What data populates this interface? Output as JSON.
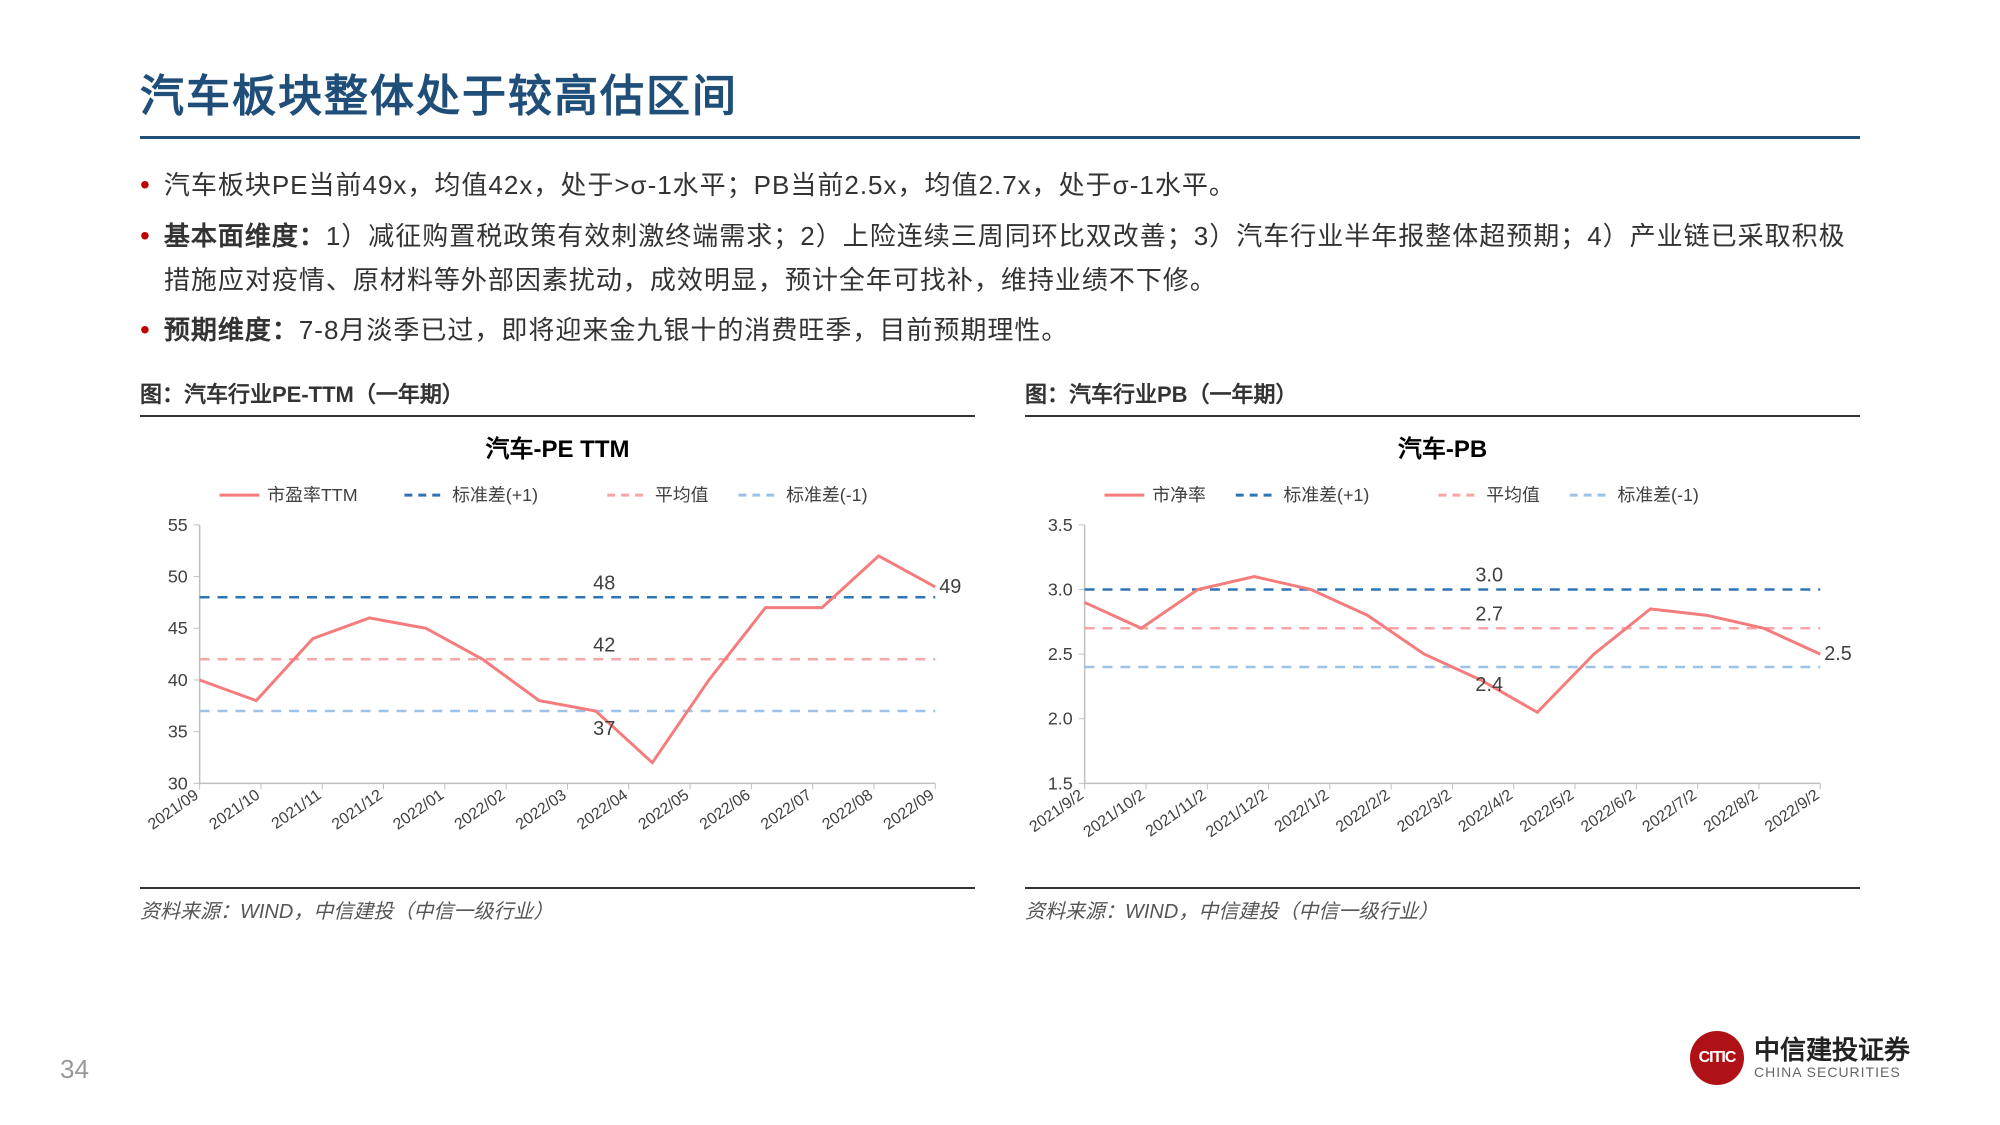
{
  "title": "汽车板块整体处于较高估区间",
  "bullets": {
    "b1": "汽车板块PE当前49x，均值42x，处于>σ-1水平；PB当前2.5x，均值2.7x，处于σ-1水平。",
    "b2_bold": "基本面维度：",
    "b2_rest": "1）减征购置税政策有效刺激终端需求；2）上险连续三周同环比双改善；3）汽车行业半年报整体超预期；4）产业链已采取积极措施应对疫情、原材料等外部因素扰动，成效明显，预计全年可找补，维持业绩不下修。",
    "b3_bold": "预期维度：",
    "b3_rest": "7-8月淡季已过，即将迎来金九银十的消费旺季，目前预期理性。"
  },
  "chart_pe": {
    "caption": "图：汽车行业PE-TTM（一年期）",
    "title": "汽车-PE TTM",
    "type": "line",
    "legend": {
      "main": "市盈率TTM",
      "stdp1": "标准差(+1)",
      "mean": "平均值",
      "stdm1": "标准差(-1)"
    },
    "x_labels": [
      "2021/09",
      "2021/10",
      "2021/11",
      "2021/12",
      "2022/01",
      "2022/02",
      "2022/03",
      "2022/04",
      "2022/05",
      "2022/06",
      "2022/07",
      "2022/08",
      "2022/09"
    ],
    "y_min": 30,
    "y_max": 55,
    "y_step": 5,
    "mean": 42,
    "stdp1": 48,
    "stdm1": 37,
    "series": [
      40,
      38,
      44,
      46,
      45,
      42,
      38,
      37,
      32,
      40,
      47,
      47,
      52,
      49
    ],
    "annotations": {
      "stdp1": "48",
      "mean": "42",
      "stdm1": "37",
      "last": "49"
    },
    "colors": {
      "main": "#f47c7c",
      "stdp1": "#2e75b6",
      "mean": "#f8a5a5",
      "stdm1": "#9cc3e5",
      "axis": "#bfbfbf",
      "text": "#404040",
      "bg": "#ffffff"
    },
    "line_width_main": 3,
    "line_width_ref": 2.5,
    "source": "资料来源：WIND，中信建投（中信一级行业）"
  },
  "chart_pb": {
    "caption": "图：汽车行业PB（一年期）",
    "title": "汽车-PB",
    "type": "line",
    "legend": {
      "main": "市净率",
      "stdp1": "标准差(+1)",
      "mean": "平均值",
      "stdm1": "标准差(-1)"
    },
    "x_labels": [
      "2021/9/2",
      "2021/10/2",
      "2021/11/2",
      "2021/12/2",
      "2022/1/2",
      "2022/2/2",
      "2022/3/2",
      "2022/4/2",
      "2022/5/2",
      "2022/6/2",
      "2022/7/2",
      "2022/8/2",
      "2022/9/2"
    ],
    "y_min": 1.5,
    "y_max": 3.5,
    "y_step": 0.5,
    "mean": 2.7,
    "stdp1": 3.0,
    "stdm1": 2.4,
    "series": [
      2.9,
      2.7,
      3.0,
      3.1,
      3.0,
      2.8,
      2.5,
      2.3,
      2.05,
      2.5,
      2.85,
      2.8,
      2.7,
      2.5
    ],
    "annotations": {
      "stdp1": "3.0",
      "mean": "2.7",
      "stdm1": "2.4",
      "last": "2.5"
    },
    "colors": {
      "main": "#f47c7c",
      "stdp1": "#2e75b6",
      "mean": "#f8a5a5",
      "stdm1": "#9cc3e5",
      "axis": "#bfbfbf",
      "text": "#404040",
      "bg": "#ffffff"
    },
    "line_width_main": 3,
    "line_width_ref": 2.5,
    "source": "资料来源：WIND，中信建投（中信一级行业）"
  },
  "page_number": "34",
  "logo": {
    "mark": "CITIC",
    "cn": "中信建投证券",
    "en": "CHINA SECURITIES"
  }
}
